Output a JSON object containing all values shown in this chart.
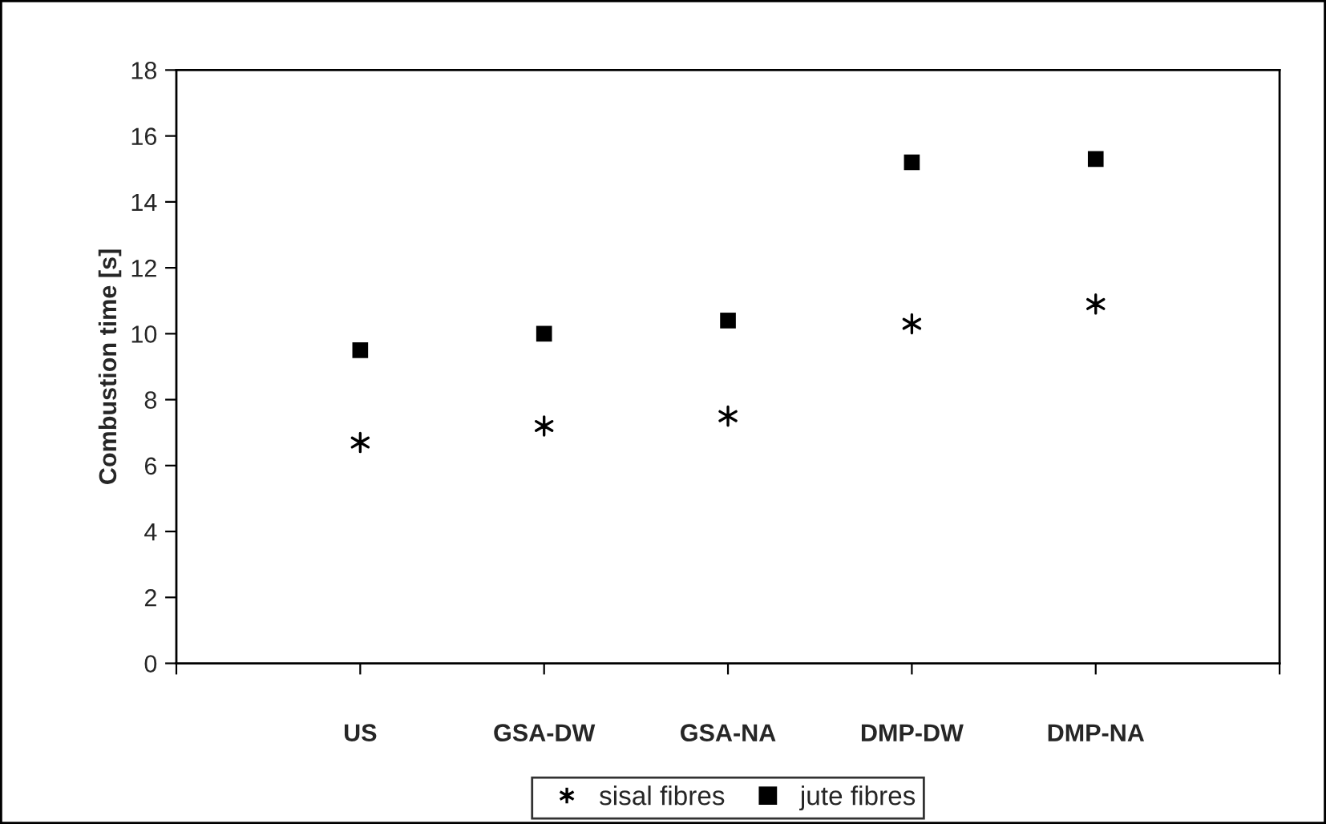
{
  "chart_data": {
    "type": "scatter",
    "ylabel": "Combustion time [s]",
    "categories": [
      "US",
      "GSA-DW",
      "GSA-NA",
      "DMP-DW",
      "DMP-NA"
    ],
    "series": [
      {
        "name": "sisal fibres",
        "color": "#000000",
        "marker": "cross",
        "values": [
          6.7,
          7.2,
          7.5,
          10.3,
          10.9
        ]
      },
      {
        "name": "jute fibres",
        "color": "#000000",
        "marker": "square",
        "values": [
          9.5,
          10.0,
          10.4,
          15.2,
          15.3
        ]
      }
    ],
    "ylim": [
      0,
      18
    ],
    "yticks": [
      0,
      2,
      4,
      6,
      8,
      10,
      12,
      14,
      16,
      18
    ],
    "grid": false,
    "legend": "bottom"
  }
}
